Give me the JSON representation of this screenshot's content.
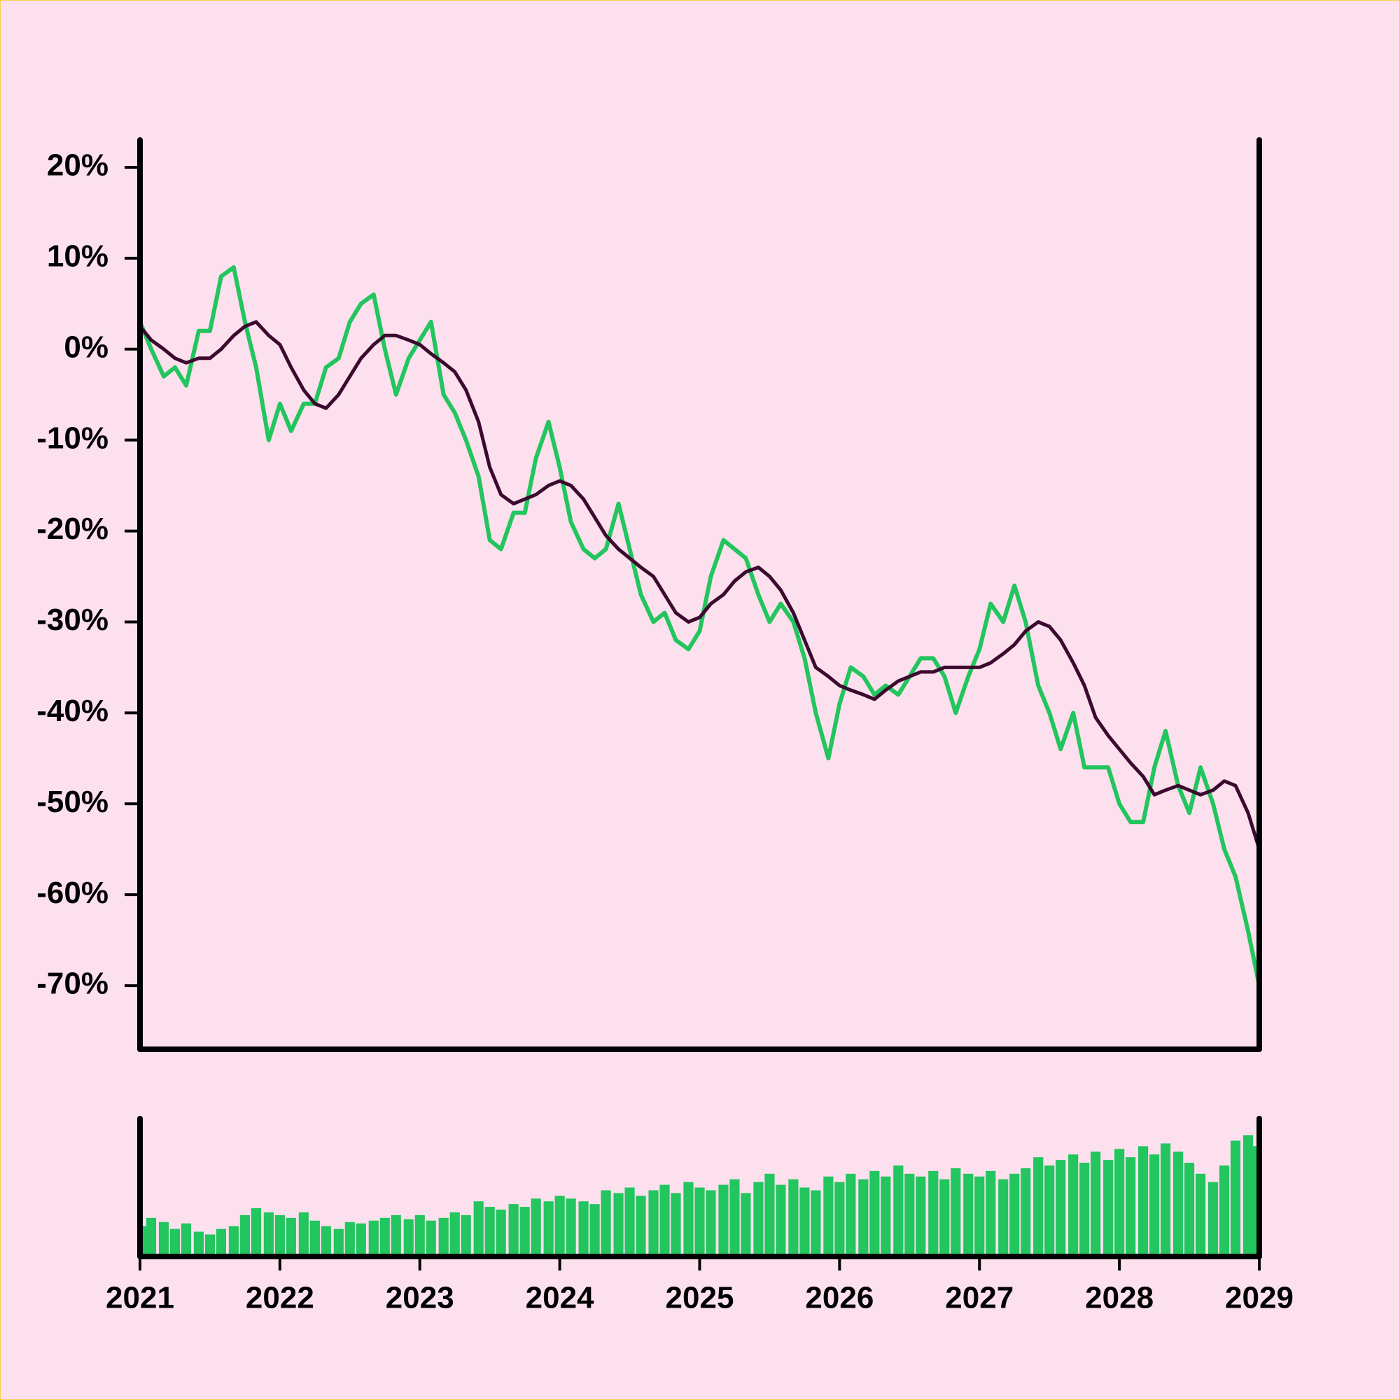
{
  "chart_data": [
    {
      "type": "line",
      "x": [
        2021,
        2021.08,
        2021.17,
        2021.25,
        2021.33,
        2021.42,
        2021.5,
        2021.58,
        2021.67,
        2021.75,
        2021.83,
        2021.92,
        2022,
        2022.08,
        2022.17,
        2022.25,
        2022.33,
        2022.42,
        2022.5,
        2022.58,
        2022.67,
        2022.75,
        2022.83,
        2022.92,
        2023,
        2023.08,
        2023.17,
        2023.25,
        2023.33,
        2023.42,
        2023.5,
        2023.58,
        2023.67,
        2023.75,
        2023.83,
        2023.92,
        2024,
        2024.08,
        2024.17,
        2024.25,
        2024.33,
        2024.42,
        2024.5,
        2024.58,
        2024.67,
        2024.75,
        2024.83,
        2024.92,
        2025,
        2025.08,
        2025.17,
        2025.25,
        2025.33,
        2025.42,
        2025.5,
        2025.58,
        2025.67,
        2025.75,
        2025.83,
        2025.92,
        2026,
        2026.08,
        2026.17,
        2026.25,
        2026.33,
        2026.42,
        2026.5,
        2026.58,
        2026.67,
        2026.75,
        2026.83,
        2026.92,
        2027,
        2027.08,
        2027.17,
        2027.25,
        2027.33,
        2027.42,
        2027.5,
        2027.58,
        2027.67,
        2027.75,
        2027.83,
        2027.92,
        2028,
        2028.08,
        2028.17,
        2028.25,
        2028.33,
        2028.42,
        2028.5,
        2028.58,
        2028.67,
        2028.75,
        2028.83,
        2028.92,
        2029
      ],
      "series": [
        {
          "color": "#22c55e",
          "values": [
            3,
            0,
            -3,
            -2,
            -4,
            2,
            2,
            8,
            9,
            3,
            -2,
            -10,
            -6,
            -9,
            -6,
            -6,
            -2,
            -1,
            3,
            5,
            6,
            0,
            -5,
            -1,
            1,
            3,
            -5,
            -7,
            -10,
            -14,
            -21,
            -22,
            -18,
            -18,
            -12,
            -8,
            -13,
            -19,
            -22,
            -23,
            -22,
            -17,
            -22,
            -27,
            -30,
            -29,
            -32,
            -33,
            -31,
            -25,
            -21,
            -22,
            -23,
            -27,
            -30,
            -28,
            -30,
            -34,
            -40,
            -45,
            -39,
            -35,
            -36,
            -38,
            -37,
            -38,
            -36,
            -34,
            -34,
            -36,
            -40,
            -36,
            -33,
            -28,
            -30,
            -26,
            -30,
            -37,
            -40,
            -44,
            -40,
            -46,
            -46,
            -46,
            -50,
            -52,
            -52,
            -46,
            -42,
            -48,
            -51,
            -46,
            -50,
            -55,
            -58,
            -64,
            -70
          ]
        },
        {
          "color": "#3b0a2e",
          "values": [
            2.5,
            1,
            0,
            -1,
            -1.5,
            -1,
            -1,
            0,
            1.5,
            2.5,
            3,
            1.5,
            0.5,
            -2,
            -4.5,
            -6,
            -6.5,
            -5,
            -3,
            -1,
            0.5,
            1.5,
            1.5,
            1,
            0.5,
            -0.5,
            -1.5,
            -2.5,
            -4.5,
            -8,
            -13,
            -16,
            -17,
            -16.5,
            -16,
            -15,
            -14.5,
            -15,
            -16.5,
            -18.5,
            -20.5,
            -22,
            -23,
            -24,
            -25,
            -27,
            -29,
            -30,
            -29.5,
            -28,
            -27,
            -25.5,
            -24.5,
            -24,
            -25,
            -26.5,
            -29,
            -32,
            -35,
            -36,
            -37,
            -37.5,
            -38,
            -38.5,
            -37.5,
            -36.5,
            -36,
            -35.5,
            -35.5,
            -35,
            -35,
            -35,
            -35,
            -34.5,
            -33.5,
            -32.5,
            -31,
            -30,
            -30.5,
            -32,
            -34.5,
            -37,
            -40.5,
            -42.5,
            -44,
            -45.5,
            -47,
            -49,
            -48.5,
            -48,
            -48.5,
            -49,
            -48.5,
            -47.5,
            -48,
            -51,
            -55
          ]
        }
      ],
      "xlim": [
        2021,
        2029
      ],
      "ylim": [
        -77,
        23
      ],
      "yticks": [
        {
          "value": 20,
          "label": "20%"
        },
        {
          "value": 10,
          "label": "10%"
        },
        {
          "value": 0,
          "label": "0%"
        },
        {
          "value": -10,
          "label": "-10%"
        },
        {
          "value": -20,
          "label": "-20%"
        },
        {
          "value": -30,
          "label": "-30%"
        },
        {
          "value": -40,
          "label": "-40%"
        },
        {
          "value": -50,
          "label": "-50%"
        },
        {
          "value": -60,
          "label": "-60%"
        },
        {
          "value": -70,
          "label": "-70%"
        }
      ]
    },
    {
      "type": "bar",
      "color": "#22c55e",
      "x": [
        2021,
        2021.08,
        2021.17,
        2021.25,
        2021.33,
        2021.42,
        2021.5,
        2021.58,
        2021.67,
        2021.75,
        2021.83,
        2021.92,
        2022,
        2022.08,
        2022.17,
        2022.25,
        2022.33,
        2022.42,
        2022.5,
        2022.58,
        2022.67,
        2022.75,
        2022.83,
        2022.92,
        2023,
        2023.08,
        2023.17,
        2023.25,
        2023.33,
        2023.42,
        2023.5,
        2023.58,
        2023.67,
        2023.75,
        2023.83,
        2023.92,
        2024,
        2024.08,
        2024.17,
        2024.25,
        2024.33,
        2024.42,
        2024.5,
        2024.58,
        2024.67,
        2024.75,
        2024.83,
        2024.92,
        2025,
        2025.08,
        2025.17,
        2025.25,
        2025.33,
        2025.42,
        2025.5,
        2025.58,
        2025.67,
        2025.75,
        2025.83,
        2025.92,
        2026,
        2026.08,
        2026.17,
        2026.25,
        2026.33,
        2026.42,
        2026.5,
        2026.58,
        2026.67,
        2026.75,
        2026.83,
        2026.92,
        2027,
        2027.08,
        2027.17,
        2027.25,
        2027.33,
        2027.42,
        2027.5,
        2027.58,
        2027.67,
        2027.75,
        2027.83,
        2027.92,
        2028,
        2028.08,
        2028.17,
        2028.25,
        2028.33,
        2028.42,
        2028.5,
        2028.58,
        2028.67,
        2028.75,
        2028.83,
        2028.92,
        2029
      ],
      "values": [
        22,
        28,
        25,
        20,
        24,
        18,
        16,
        20,
        22,
        30,
        35,
        32,
        30,
        28,
        32,
        26,
        22,
        20,
        25,
        24,
        26,
        28,
        30,
        27,
        30,
        26,
        28,
        32,
        30,
        40,
        36,
        34,
        38,
        36,
        42,
        40,
        44,
        42,
        40,
        38,
        48,
        46,
        50,
        44,
        48,
        52,
        46,
        54,
        50,
        48,
        52,
        56,
        46,
        54,
        60,
        52,
        56,
        50,
        48,
        58,
        54,
        60,
        56,
        62,
        58,
        66,
        60,
        58,
        62,
        56,
        64,
        60,
        58,
        62,
        56,
        60,
        64,
        72,
        66,
        70,
        74,
        68,
        76,
        70,
        78,
        72,
        80,
        74,
        82,
        76,
        68,
        60,
        54,
        66,
        84,
        88,
        80
      ],
      "xlim": [
        2021,
        2029
      ],
      "ylim": [
        0,
        100
      ],
      "xticks": [
        2021,
        2022,
        2023,
        2024,
        2025,
        2026,
        2027,
        2028,
        2029
      ]
    }
  ]
}
